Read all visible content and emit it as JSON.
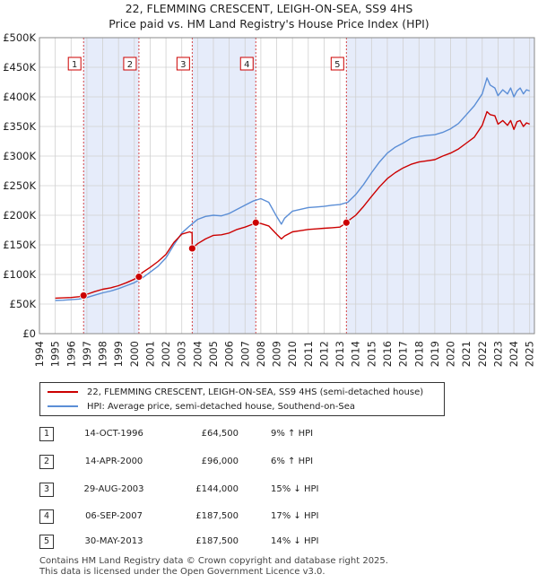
{
  "chart_data": {
    "type": "line",
    "title": "22, FLEMMING CRESCENT, LEIGH-ON-SEA, SS9 4HS",
    "subtitle": "Price paid vs. HM Land Registry's House Price Index (HPI)",
    "xlim": [
      1994,
      2025.3
    ],
    "ylim": [
      0,
      500000
    ],
    "x_ticks": [
      1994,
      1995,
      1996,
      1997,
      1998,
      1999,
      2000,
      2001,
      2002,
      2003,
      2004,
      2005,
      2006,
      2007,
      2008,
      2009,
      2010,
      2011,
      2012,
      2013,
      2014,
      2015,
      2016,
      2017,
      2018,
      2019,
      2020,
      2021,
      2022,
      2023,
      2024,
      2025
    ],
    "y_ticks": [
      {
        "value": 0,
        "label": "£0"
      },
      {
        "value": 50000,
        "label": "£50K"
      },
      {
        "value": 100000,
        "label": "£100K"
      },
      {
        "value": 150000,
        "label": "£150K"
      },
      {
        "value": 200000,
        "label": "£200K"
      },
      {
        "value": 250000,
        "label": "£250K"
      },
      {
        "value": 300000,
        "label": "£300K"
      },
      {
        "value": 350000,
        "label": "£350K"
      },
      {
        "value": 400000,
        "label": "£400K"
      },
      {
        "value": 450000,
        "label": "£450K"
      },
      {
        "value": 500000,
        "label": "£500K"
      }
    ],
    "series": [
      {
        "name": "22, FLEMMING CRESCENT, LEIGH-ON-SEA, SS9 4HS (semi-detached house)",
        "color": "#cc0000",
        "x": [
          1995.0,
          1995.5,
          1996.0,
          1996.5,
          1996.79,
          1997.0,
          1997.5,
          1998.0,
          1998.5,
          1999.0,
          1999.5,
          2000.0,
          2000.29,
          2000.5,
          2001.0,
          2001.5,
          2002.0,
          2002.5,
          2003.0,
          2003.5,
          2003.65,
          2003.66,
          2004.0,
          2004.5,
          2005.0,
          2005.5,
          2006.0,
          2006.5,
          2007.0,
          2007.5,
          2007.68,
          2008.0,
          2008.5,
          2009.0,
          2009.3,
          2009.5,
          2010.0,
          2010.5,
          2011.0,
          2011.5,
          2012.0,
          2012.5,
          2013.0,
          2013.41,
          2013.5,
          2014.0,
          2014.5,
          2015.0,
          2015.5,
          2016.0,
          2016.5,
          2017.0,
          2017.5,
          2018.0,
          2018.5,
          2019.0,
          2019.5,
          2020.0,
          2020.5,
          2021.0,
          2021.5,
          2022.0,
          2022.3,
          2022.5,
          2022.8,
          2023.0,
          2023.3,
          2023.6,
          2023.8,
          2024.0,
          2024.2,
          2024.4,
          2024.6,
          2024.8,
          2025.0
        ],
        "values": [
          60000,
          60500,
          61000,
          62500,
          64500,
          66500,
          71000,
          75000,
          77500,
          81000,
          86000,
          92000,
          96000,
          103000,
          112000,
          122000,
          134000,
          154000,
          168000,
          172000,
          170000,
          144000,
          152000,
          160000,
          166000,
          167000,
          170000,
          176000,
          180000,
          185000,
          187500,
          186000,
          182000,
          168000,
          160000,
          165000,
          172000,
          174000,
          176000,
          177000,
          178000,
          179000,
          180000,
          187500,
          190000,
          200000,
          215000,
          232000,
          248000,
          262000,
          272000,
          280000,
          286000,
          290000,
          292000,
          294000,
          300000,
          305000,
          312000,
          322000,
          332000,
          352000,
          375000,
          370000,
          368000,
          354000,
          360000,
          352000,
          360000,
          345000,
          358000,
          360000,
          350000,
          356000,
          354000
        ]
      },
      {
        "name": "HPI: Average price, semi-detached house, Southend-on-Sea",
        "color": "#5b8ed6",
        "x": [
          1995.0,
          1995.5,
          1996.0,
          1996.5,
          1997.0,
          1997.5,
          1998.0,
          1998.5,
          1999.0,
          1999.5,
          2000.0,
          2000.5,
          2001.0,
          2001.5,
          2002.0,
          2002.5,
          2003.0,
          2003.5,
          2004.0,
          2004.5,
          2005.0,
          2005.5,
          2006.0,
          2006.5,
          2007.0,
          2007.5,
          2008.0,
          2008.5,
          2009.0,
          2009.3,
          2009.5,
          2010.0,
          2010.5,
          2011.0,
          2011.5,
          2012.0,
          2012.5,
          2013.0,
          2013.5,
          2014.0,
          2014.5,
          2015.0,
          2015.5,
          2016.0,
          2016.5,
          2017.0,
          2017.5,
          2018.0,
          2018.5,
          2019.0,
          2019.5,
          2020.0,
          2020.5,
          2021.0,
          2021.5,
          2022.0,
          2022.3,
          2022.5,
          2022.8,
          2023.0,
          2023.3,
          2023.6,
          2023.8,
          2024.0,
          2024.2,
          2024.4,
          2024.6,
          2024.8,
          2025.0
        ],
        "values": [
          56000,
          56500,
          57500,
          58500,
          61000,
          65000,
          69000,
          72000,
          76000,
          81000,
          86000,
          94000,
          104000,
          114000,
          128000,
          150000,
          170000,
          182000,
          193000,
          198000,
          200000,
          199000,
          203000,
          210000,
          217000,
          224000,
          228000,
          222000,
          198000,
          185000,
          195000,
          207000,
          210000,
          213000,
          214000,
          215000,
          217000,
          218000,
          222000,
          235000,
          252000,
          272000,
          290000,
          305000,
          315000,
          322000,
          330000,
          333000,
          335000,
          336000,
          340000,
          346000,
          355000,
          370000,
          385000,
          405000,
          432000,
          420000,
          415000,
          402000,
          412000,
          405000,
          415000,
          400000,
          410000,
          415000,
          405000,
          412000,
          410000
        ]
      }
    ],
    "transactions": [
      {
        "num": "1",
        "date": "14-OCT-1996",
        "x": 1996.79,
        "price": 64500,
        "price_label": "£64,500",
        "hpi": "9% ↑ HPI"
      },
      {
        "num": "2",
        "date": "14-APR-2000",
        "x": 2000.29,
        "price": 96000,
        "price_label": "£96,000",
        "hpi": "6% ↑ HPI"
      },
      {
        "num": "3",
        "date": "29-AUG-2003",
        "x": 2003.66,
        "price": 144000,
        "price_label": "£144,000",
        "hpi": "15% ↓ HPI"
      },
      {
        "num": "4",
        "date": "06-SEP-2007",
        "x": 2007.68,
        "price": 187500,
        "price_label": "£187,500",
        "hpi": "17% ↓ HPI"
      },
      {
        "num": "5",
        "date": "30-MAY-2013",
        "x": 2013.41,
        "price": 187500,
        "price_label": "£187,500",
        "hpi": "14% ↓ HPI"
      }
    ],
    "shaded_ranges": [
      [
        1996.79,
        2000.29
      ],
      [
        2003.66,
        2007.68
      ],
      [
        2013.41,
        2025.3
      ]
    ]
  },
  "legend": {
    "property": "22, FLEMMING CRESCENT, LEIGH-ON-SEA, SS9 4HS (semi-detached house)",
    "hpi": "HPI: Average price, semi-detached house, Southend-on-Sea"
  },
  "footer": {
    "line1": "Contains HM Land Registry data © Crown copyright and database right 2025.",
    "line2": "This data is licensed under the Open Government Licence v3.0."
  },
  "colors": {
    "property": "#cc0000",
    "hpi": "#5b8ed6",
    "shade": "#e6ecfa",
    "grid": "#d0d0d0"
  }
}
